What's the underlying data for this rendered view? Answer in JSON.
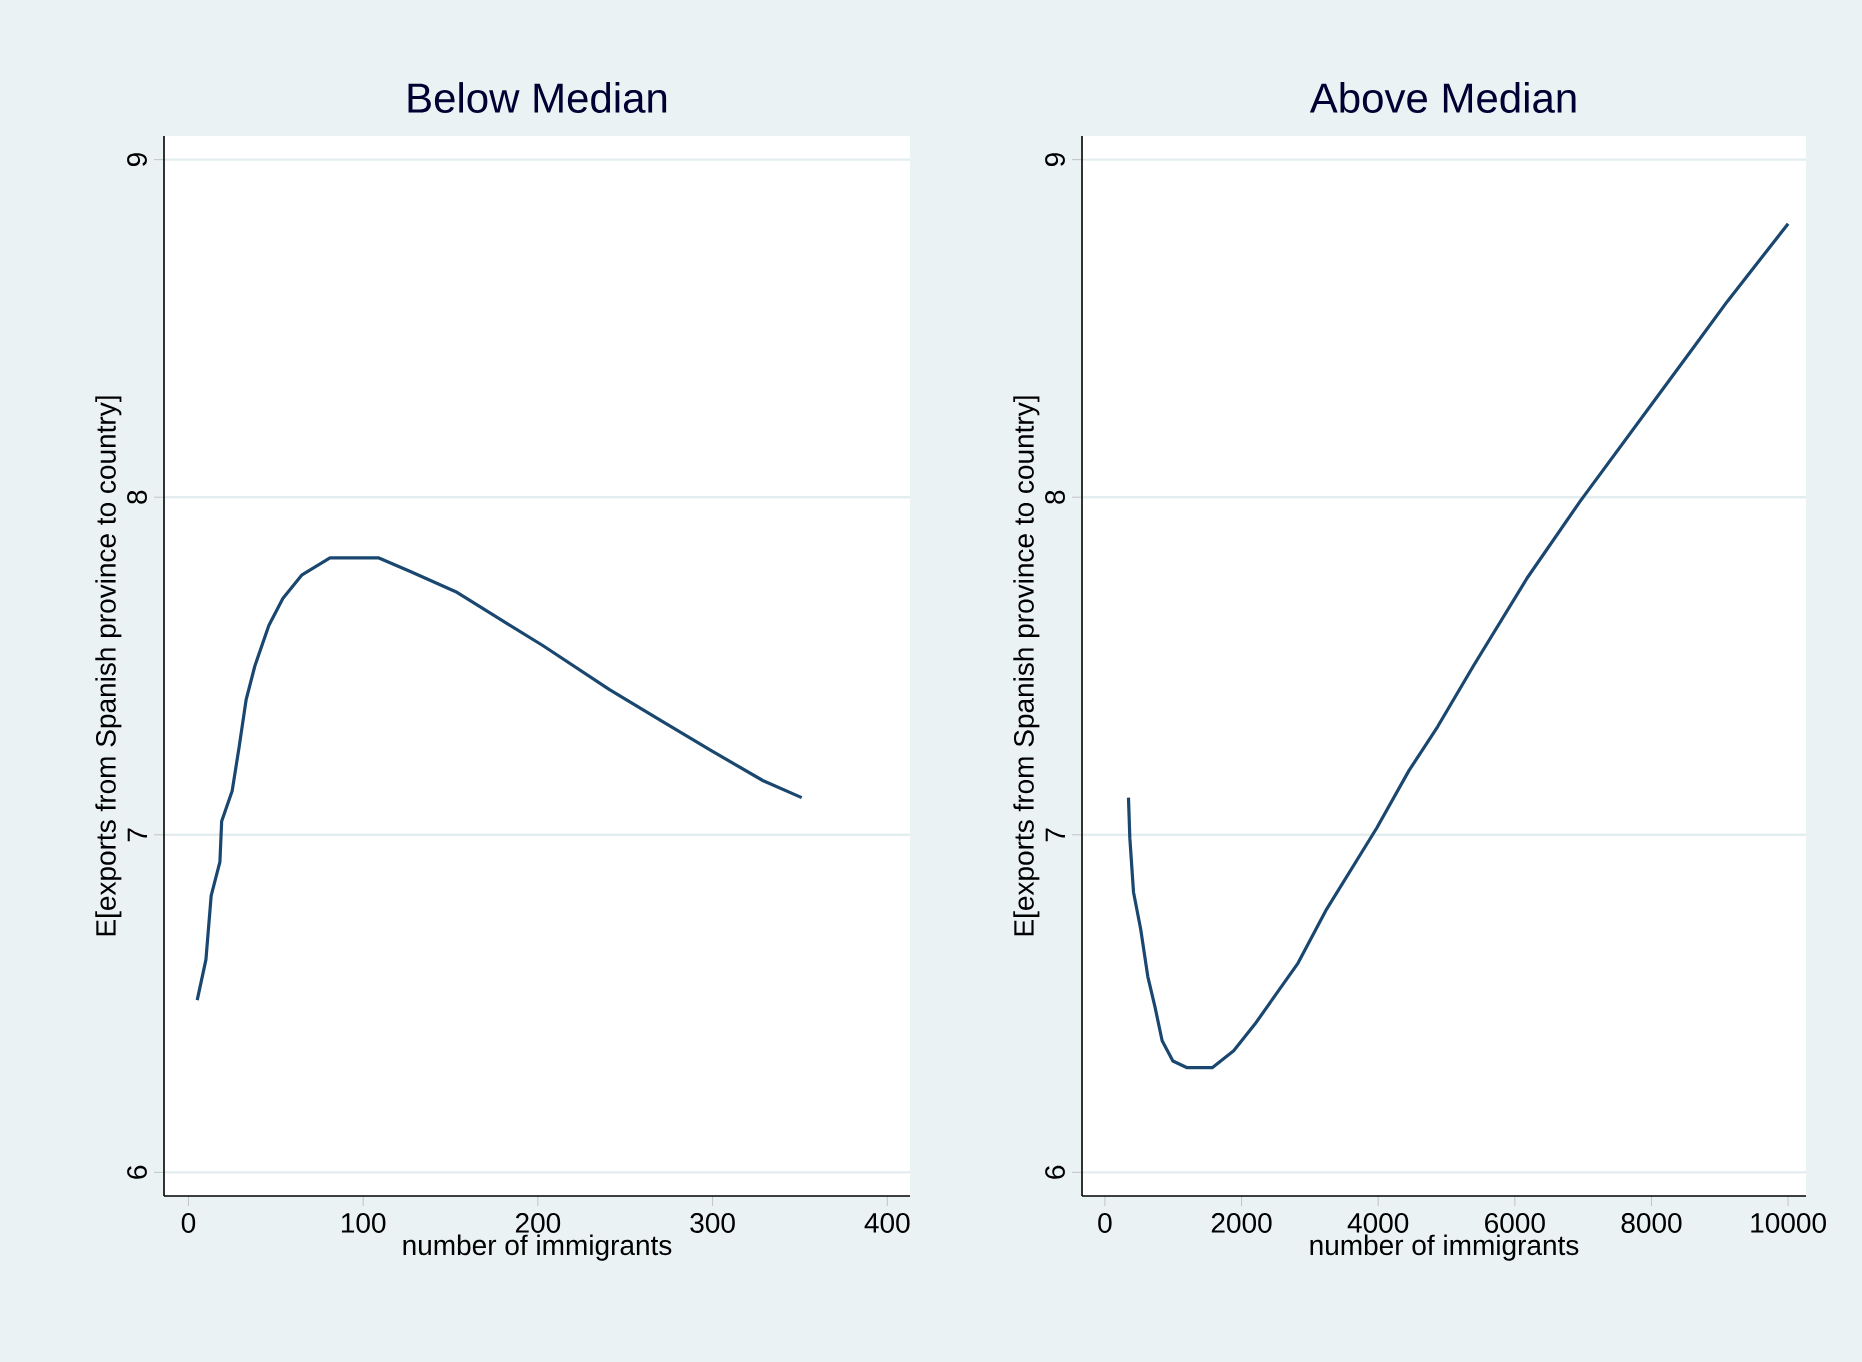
{
  "chart_data": [
    {
      "type": "line",
      "title": "Below Median",
      "xlabel": "number of immigrants",
      "ylabel": "E[exports from Spanish province to country]",
      "color": "#1a476f",
      "grid": "y",
      "xlim": [
        -14,
        413
      ],
      "ylim": [
        5.93,
        9.07
      ],
      "xticks": [
        0,
        100,
        200,
        300,
        400
      ],
      "yticks": [
        6,
        7,
        8,
        9
      ],
      "x": [
        5,
        10,
        13,
        18,
        19,
        25,
        29,
        33,
        38,
        46,
        54,
        65,
        81,
        109,
        127,
        153,
        178,
        203,
        241,
        270,
        299,
        329,
        351
      ],
      "values": [
        6.51,
        6.63,
        6.82,
        6.92,
        7.04,
        7.13,
        7.26,
        7.4,
        7.5,
        7.62,
        7.7,
        7.77,
        7.82,
        7.82,
        7.78,
        7.72,
        7.64,
        7.56,
        7.43,
        7.34,
        7.25,
        7.16,
        7.11
      ]
    },
    {
      "type": "line",
      "title": "Above Median",
      "xlabel": "number of immigrants",
      "ylabel": "E[exports from Spanish province to country]",
      "color": "#1a476f",
      "grid": "y",
      "xlim": [
        -335,
        10262
      ],
      "ylim": [
        5.93,
        9.07
      ],
      "xticks": [
        0,
        2000,
        4000,
        6000,
        8000,
        10000
      ],
      "yticks": [
        6,
        7,
        8,
        9
      ],
      "x": [
        345,
        365,
        419,
        524,
        628,
        733,
        838,
        995,
        1204,
        1571,
        1885,
        2199,
        2513,
        2827,
        3246,
        3979,
        4450,
        4869,
        5393,
        6178,
        6963,
        8639,
        9110,
        10000
      ],
      "values": [
        7.11,
        6.99,
        6.83,
        6.72,
        6.58,
        6.49,
        6.39,
        6.33,
        6.31,
        6.31,
        6.36,
        6.44,
        6.53,
        6.62,
        6.78,
        7.02,
        7.19,
        7.32,
        7.5,
        7.76,
        7.99,
        8.45,
        8.58,
        8.81
      ]
    }
  ]
}
